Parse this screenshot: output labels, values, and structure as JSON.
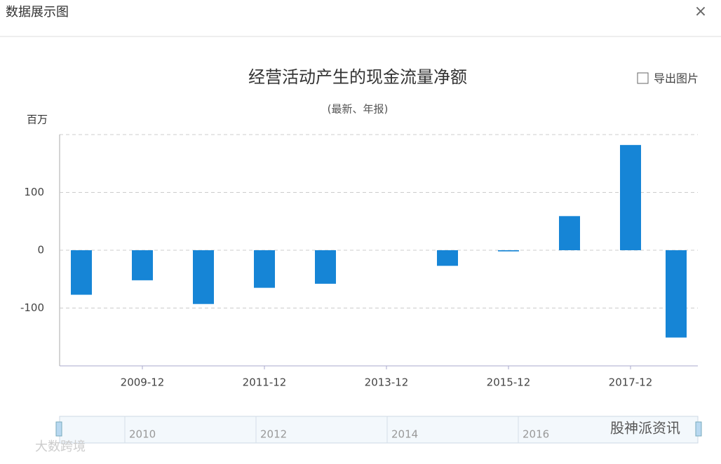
{
  "dialog": {
    "title": "数据展示图",
    "close": "×"
  },
  "chart_data": {
    "type": "bar",
    "title": "经营活动产生的现金流量净额",
    "subtitle": "(最新、年报)",
    "y_unit": "百万",
    "export_label": "导出图片",
    "categories": [
      null,
      "2009-12",
      null,
      "2011-12",
      null,
      "2013-12",
      null,
      "2015-12",
      null,
      "2017-12",
      null
    ],
    "values": [
      -77,
      -52,
      -93,
      -65,
      -58,
      0,
      -27,
      -2,
      59,
      182,
      -151
    ],
    "color": "#1685d6",
    "ylim": [
      -200,
      200
    ],
    "yticks": [
      -100,
      0,
      100
    ],
    "grid": true
  },
  "slider": {
    "labels": [
      "2010",
      "2012",
      "2014",
      "2016"
    ]
  },
  "watermarks": [
    "股神派资讯",
    "大数跨境"
  ]
}
